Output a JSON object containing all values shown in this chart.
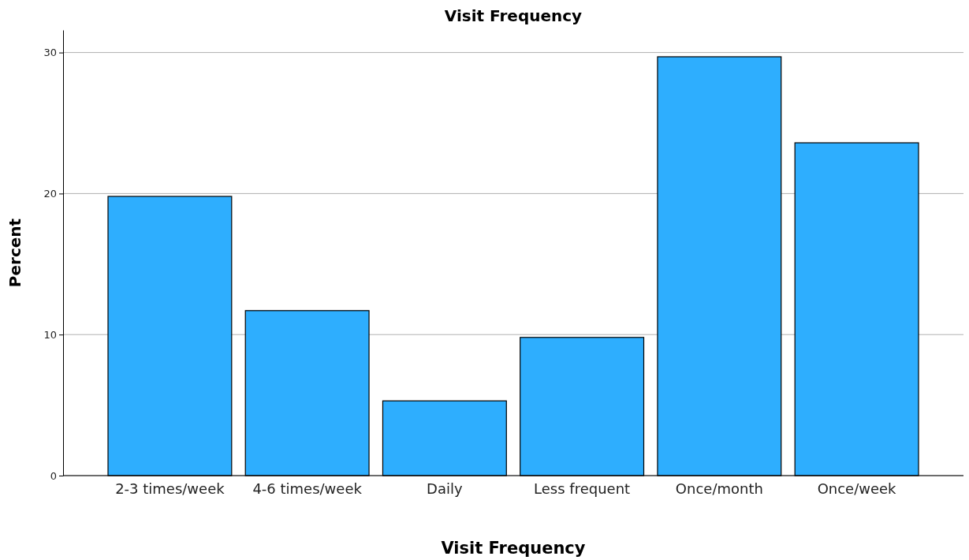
{
  "chart_data": {
    "type": "bar",
    "title": "Visit Frequency",
    "xlabel": "Visit Frequency",
    "ylabel": "Percent",
    "categories": [
      "2-3 times/week",
      "4-6 times/week",
      "Daily",
      "Less frequent",
      "Once/month",
      "Once/week"
    ],
    "values": [
      19.8,
      11.7,
      5.3,
      9.8,
      29.7,
      23.6
    ],
    "color": "#2eaefe",
    "ylim": [
      0,
      31.6
    ],
    "yticks": [
      0,
      10,
      20,
      30
    ],
    "grid": "y"
  }
}
